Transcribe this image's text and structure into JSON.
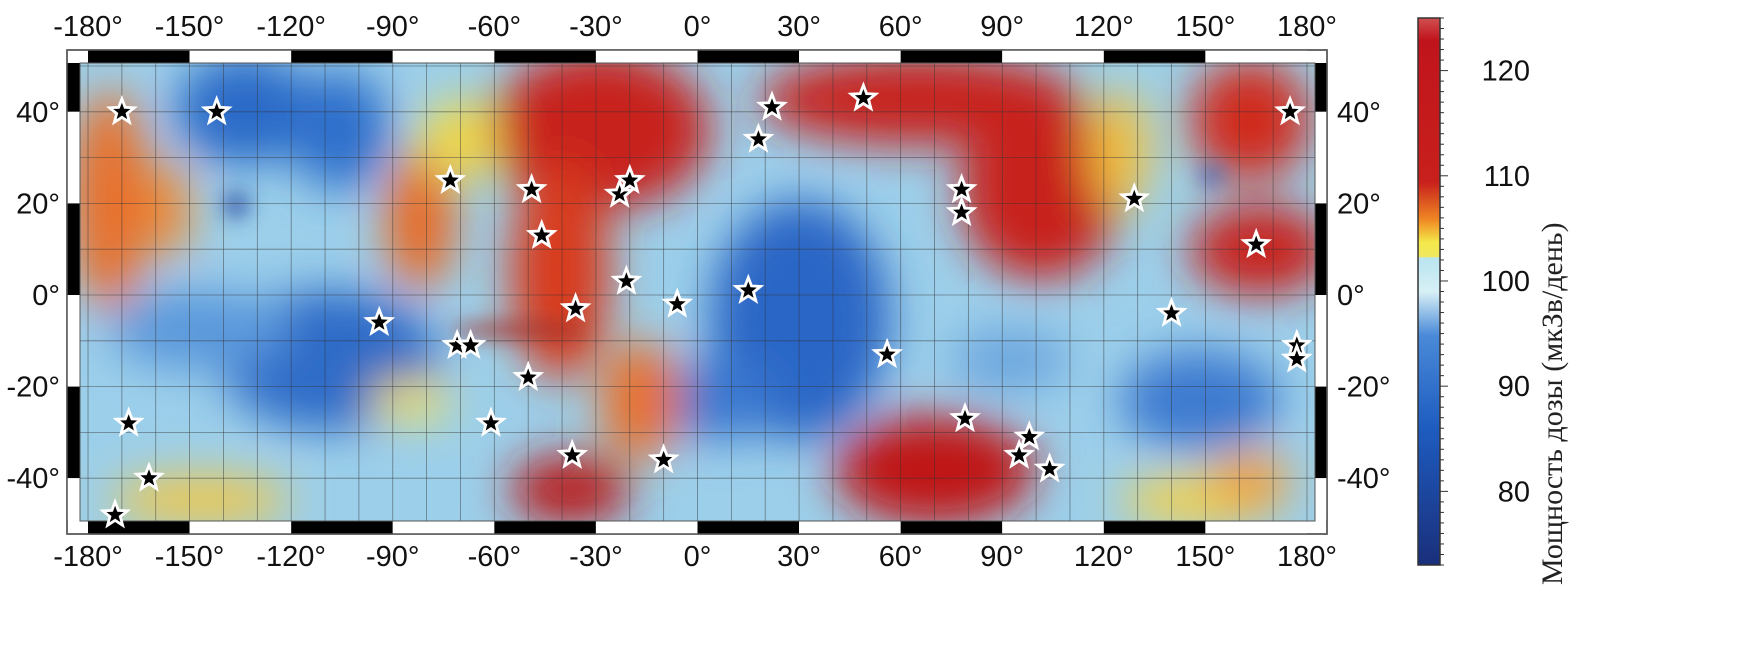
{
  "map": {
    "lon_range": [
      -180,
      180
    ],
    "lat_range": [
      -50,
      50
    ],
    "lon_ticks": [
      "-180°",
      "-150°",
      "-120°",
      "-90°",
      "-60°",
      "-30°",
      "0°",
      "30°",
      "60°",
      "90°",
      "120°",
      "150°",
      "180°"
    ],
    "lon_tick_values": [
      -180,
      -150,
      -120,
      -90,
      -60,
      -30,
      0,
      30,
      60,
      90,
      120,
      150,
      180
    ],
    "lat_ticks": [
      "40°",
      "20°",
      "0°",
      "-20°",
      "-40°"
    ],
    "lat_tick_values": [
      40,
      20,
      0,
      -20,
      -40
    ],
    "grid": true,
    "grid_step_deg": 10,
    "markers": {
      "symbol": "star-icon",
      "points": [
        [
          -170,
          40
        ],
        [
          -142,
          40
        ],
        [
          -73,
          25
        ],
        [
          -49,
          23
        ],
        [
          -46,
          13
        ],
        [
          -23,
          22
        ],
        [
          -20,
          25
        ],
        [
          -21,
          3
        ],
        [
          -36,
          -3
        ],
        [
          -6,
          -2
        ],
        [
          15,
          1
        ],
        [
          22,
          41
        ],
        [
          18,
          34
        ],
        [
          49,
          43
        ],
        [
          78,
          23
        ],
        [
          78,
          18
        ],
        [
          129,
          21
        ],
        [
          165,
          11
        ],
        [
          175,
          40
        ],
        [
          140,
          -4
        ],
        [
          177,
          -11
        ],
        [
          177,
          -14
        ],
        [
          56,
          -13
        ],
        [
          79,
          -27
        ],
        [
          98,
          -31
        ],
        [
          95,
          -35
        ],
        [
          104,
          -38
        ],
        [
          -94,
          -6
        ],
        [
          -71,
          -11
        ],
        [
          -67,
          -11
        ],
        [
          -50,
          -18
        ],
        [
          -61,
          -28
        ],
        [
          -37,
          -35
        ],
        [
          -10,
          -36
        ],
        [
          -168,
          -28
        ],
        [
          -162,
          -40
        ],
        [
          -172,
          -48
        ]
      ]
    }
  },
  "colorbar": {
    "label": "Мощность дозы (мкЗв/день)",
    "ticks": [
      "80",
      "90",
      "100",
      "110",
      "120"
    ],
    "tick_values": [
      80,
      90,
      100,
      110,
      120
    ],
    "range": [
      73,
      125
    ],
    "colors": {
      "high": "#c0141c",
      "mid_high": "#f08a24",
      "mid": "#f4e84a",
      "mid_low": "#b8e4f0",
      "low": "#1e5cc0",
      "lowest": "#1a2f7a"
    }
  }
}
